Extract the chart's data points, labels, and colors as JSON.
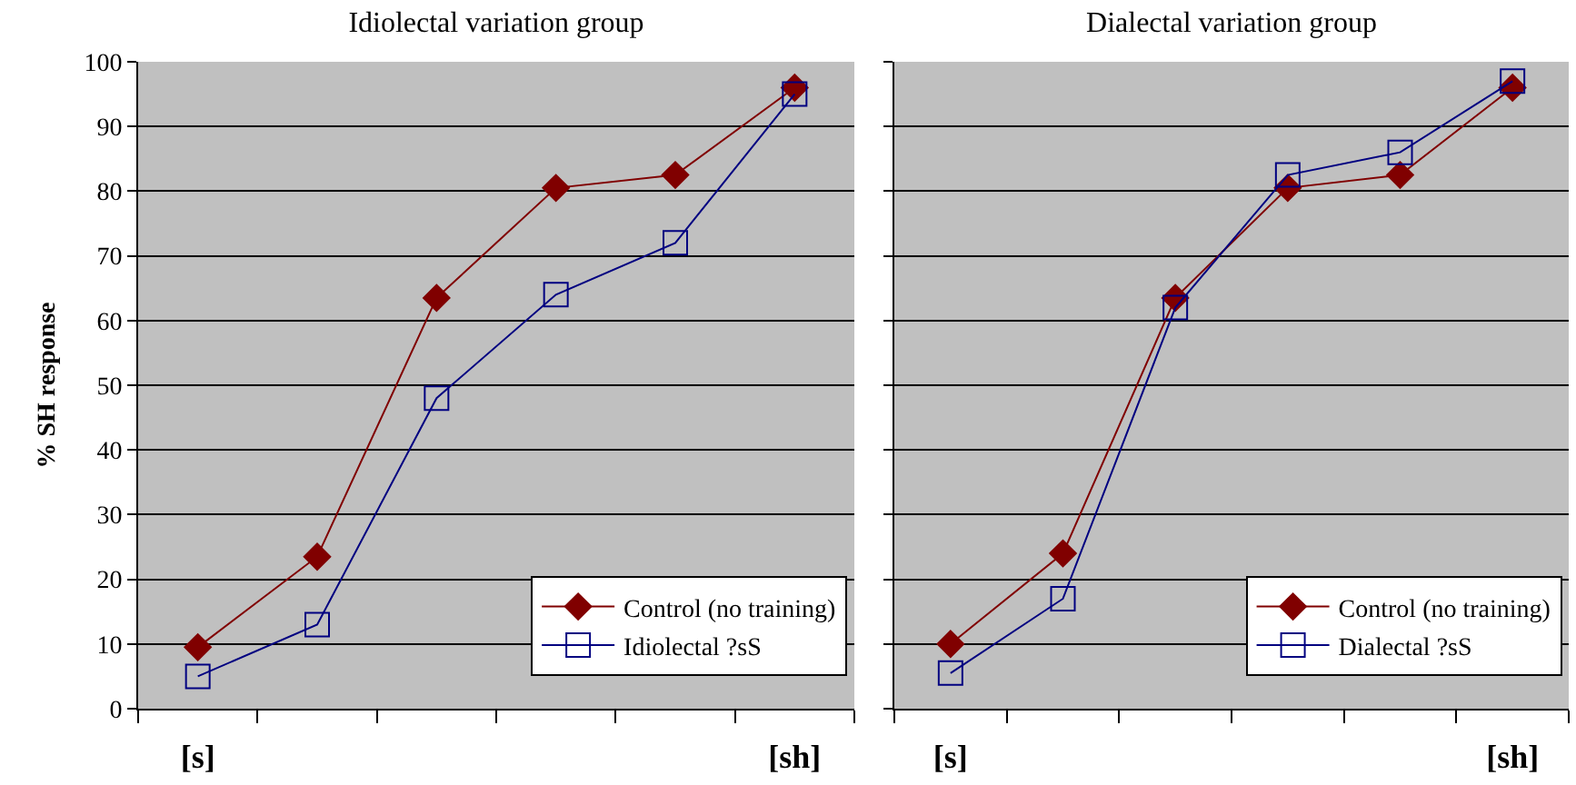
{
  "chart_data": [
    {
      "type": "line",
      "title": "Idiolectal variation group",
      "ylabel": "% SH response",
      "categories": [
        "[s]",
        null,
        null,
        null,
        null,
        "[sh]"
      ],
      "ylim": [
        0,
        100
      ],
      "yticks": [
        0,
        10,
        20,
        30,
        40,
        50,
        60,
        70,
        80,
        90,
        100
      ],
      "grid": "y",
      "legend": "bottom right",
      "series": [
        {
          "name": "Control (no training)",
          "color": "#800000",
          "marker": "diamond",
          "values": [
            9.5,
            23.5,
            63.5,
            80.5,
            82.5,
            96
          ]
        },
        {
          "name": "Idiolectal ?sS",
          "color": "#000080",
          "marker": "square",
          "values": [
            5,
            13,
            48,
            64,
            72,
            95
          ]
        }
      ]
    },
    {
      "type": "line",
      "title": "Dialectal variation group",
      "categories": [
        "[s]",
        null,
        null,
        null,
        null,
        "[sh]"
      ],
      "ylim": [
        0,
        100
      ],
      "yticks": [
        0,
        10,
        20,
        30,
        40,
        50,
        60,
        70,
        80,
        90,
        100
      ],
      "tick_labels": "x",
      "grid": "y",
      "legend": "bottom right",
      "series": [
        {
          "name": "Control (no training)",
          "color": "#800000",
          "marker": "diamond",
          "values": [
            10,
            24,
            63.5,
            80.5,
            82.5,
            96
          ]
        },
        {
          "name": "Dialectal ?sS",
          "color": "#000080",
          "marker": "square",
          "values": [
            5.5,
            17,
            62,
            82.5,
            86,
            97
          ]
        }
      ]
    }
  ]
}
